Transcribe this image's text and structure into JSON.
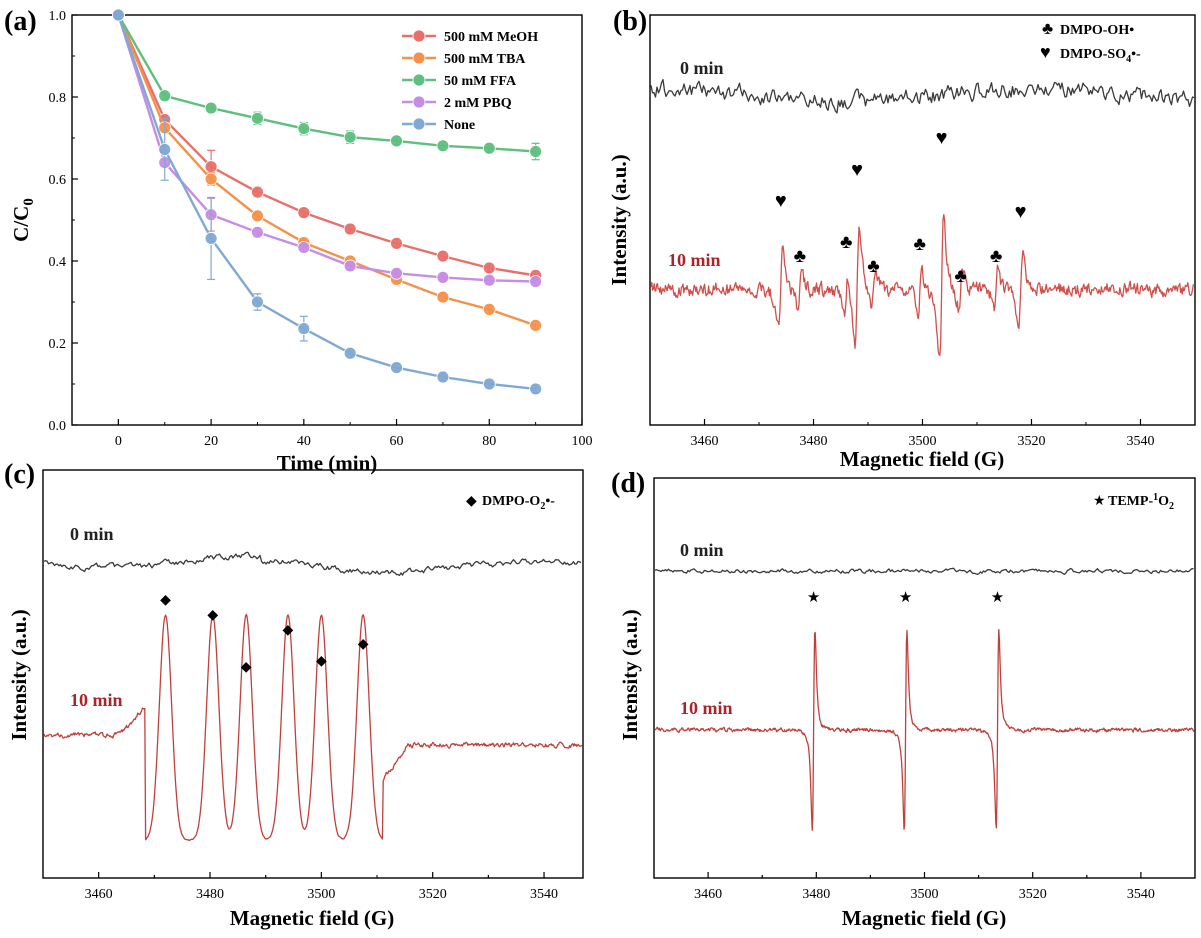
{
  "chart_data": [
    {
      "panel": "(a)",
      "type": "line",
      "xlabel": "Time (min)",
      "ylabel": "C/C",
      "ylabel_sub": "0",
      "xlim": [
        -10,
        100
      ],
      "ylim": [
        0.0,
        1.0
      ],
      "x_ticks": [
        "0",
        "20",
        "40",
        "60",
        "80",
        "100"
      ],
      "y_ticks": [
        "0.0",
        "0.2",
        "0.4",
        "0.6",
        "0.8",
        "1.0"
      ],
      "legend_position": "top-right",
      "x": [
        0,
        10,
        20,
        30,
        40,
        50,
        60,
        70,
        80,
        90
      ],
      "series": [
        {
          "name": "500 mM MeOH",
          "color": "#e8706b",
          "values": [
            1.0,
            0.745,
            0.63,
            0.568,
            0.518,
            0.478,
            0.443,
            0.412,
            0.383,
            0.365
          ],
          "errors": [
            0,
            0.01,
            0.04,
            0.012,
            0.01,
            0.01,
            0.01,
            0.01,
            0.01,
            0.01
          ]
        },
        {
          "name": "500 mM TBA",
          "color": "#f5914a",
          "values": [
            1.0,
            0.725,
            0.6,
            0.51,
            0.445,
            0.4,
            0.355,
            0.312,
            0.282,
            0.243
          ],
          "errors": [
            0,
            0.01,
            0.015,
            0.01,
            0.01,
            0.01,
            0.01,
            0.01,
            0.01,
            0.01
          ]
        },
        {
          "name": "50 mM FFA",
          "color": "#5fbf7e",
          "values": [
            1.0,
            0.803,
            0.773,
            0.748,
            0.723,
            0.702,
            0.693,
            0.681,
            0.675,
            0.667
          ],
          "errors": [
            0,
            0.01,
            0.01,
            0.015,
            0.015,
            0.015,
            0.01,
            0.01,
            0.01,
            0.02
          ]
        },
        {
          "name": "2 mM PBQ",
          "color": "#c58de4",
          "values": [
            1.0,
            0.64,
            0.513,
            0.47,
            0.433,
            0.388,
            0.37,
            0.36,
            0.353,
            0.35
          ],
          "errors": [
            0,
            0.01,
            0.04,
            0.01,
            0.01,
            0.01,
            0.01,
            0.01,
            0.01,
            0.01
          ]
        },
        {
          "name": "None",
          "color": "#7fa9d4",
          "values": [
            1.0,
            0.672,
            0.455,
            0.3,
            0.235,
            0.175,
            0.14,
            0.117,
            0.1,
            0.088
          ],
          "errors": [
            0,
            0.075,
            0.1,
            0.02,
            0.03,
            0.01,
            0.01,
            0.01,
            0.01,
            0.01
          ]
        }
      ]
    },
    {
      "panel": "(b)",
      "type": "line",
      "xlabel": "Magnetic field (G)",
      "ylabel": "Intensity (a.u.)",
      "xlim": [
        3450,
        3550
      ],
      "x_ticks": [
        "3460",
        "3480",
        "3500",
        "3520",
        "3540"
      ],
      "legend": [
        "DMPO-OH•",
        "DMPO-SO",
        "•-"
      ],
      "legend_sub": "4",
      "legend_symbols": [
        "♣",
        "♥"
      ],
      "traces": [
        {
          "name": "0 min",
          "color": "#3a3a3a",
          "baseline_y": 95
        },
        {
          "name": "10 min",
          "color": "#d0504c",
          "baseline_y": 290
        }
      ],
      "sulfate_peaks_G": [
        3474,
        3488,
        3503.5,
        3518
      ],
      "sulfate_amplitudes": [
        0.55,
        0.85,
        1.0,
        0.5
      ],
      "hydroxyl_peaks_G": [
        3477.5,
        3486,
        3491,
        3499.5,
        3507,
        3513.5
      ],
      "hydroxyl_amplitudes": [
        0.3,
        0.3,
        0.3,
        0.3,
        0.3,
        0.3
      ]
    },
    {
      "panel": "(c)",
      "type": "line",
      "xlabel": "Magnetic field (G)",
      "ylabel": "Intensity (a.u.)",
      "xlim": [
        3450,
        3547
      ],
      "x_ticks": [
        "3460",
        "3480",
        "3500",
        "3520",
        "3540"
      ],
      "legend": [
        "DMPO-O",
        "•-"
      ],
      "legend_sub": "2",
      "legend_symbols": [
        "◆"
      ],
      "traces": [
        {
          "name": "0 min",
          "color": "#3a3a3a"
        },
        {
          "name": "10 min",
          "color": "#c0403c"
        }
      ],
      "superoxide_peaks_G": [
        3472,
        3480.5,
        3486.5,
        3494,
        3500,
        3507.5
      ]
    },
    {
      "panel": "(d)",
      "type": "line",
      "xlabel": "Magnetic field (G)",
      "ylabel": "Intensity (a.u.)",
      "xlim": [
        3450,
        3550
      ],
      "x_ticks": [
        "3460",
        "3480",
        "3500",
        "3520",
        "3540"
      ],
      "legend": [
        "TEMP-",
        "O"
      ],
      "legend_sup": "1",
      "legend_sub": "2",
      "legend_symbols": [
        "★"
      ],
      "traces": [
        {
          "name": "0 min",
          "color": "#3a3a3a"
        },
        {
          "name": "10 min",
          "color": "#c0403c"
        }
      ],
      "singlet_oxygen_peaks_G": [
        3479.5,
        3496.5,
        3513.5
      ]
    }
  ]
}
